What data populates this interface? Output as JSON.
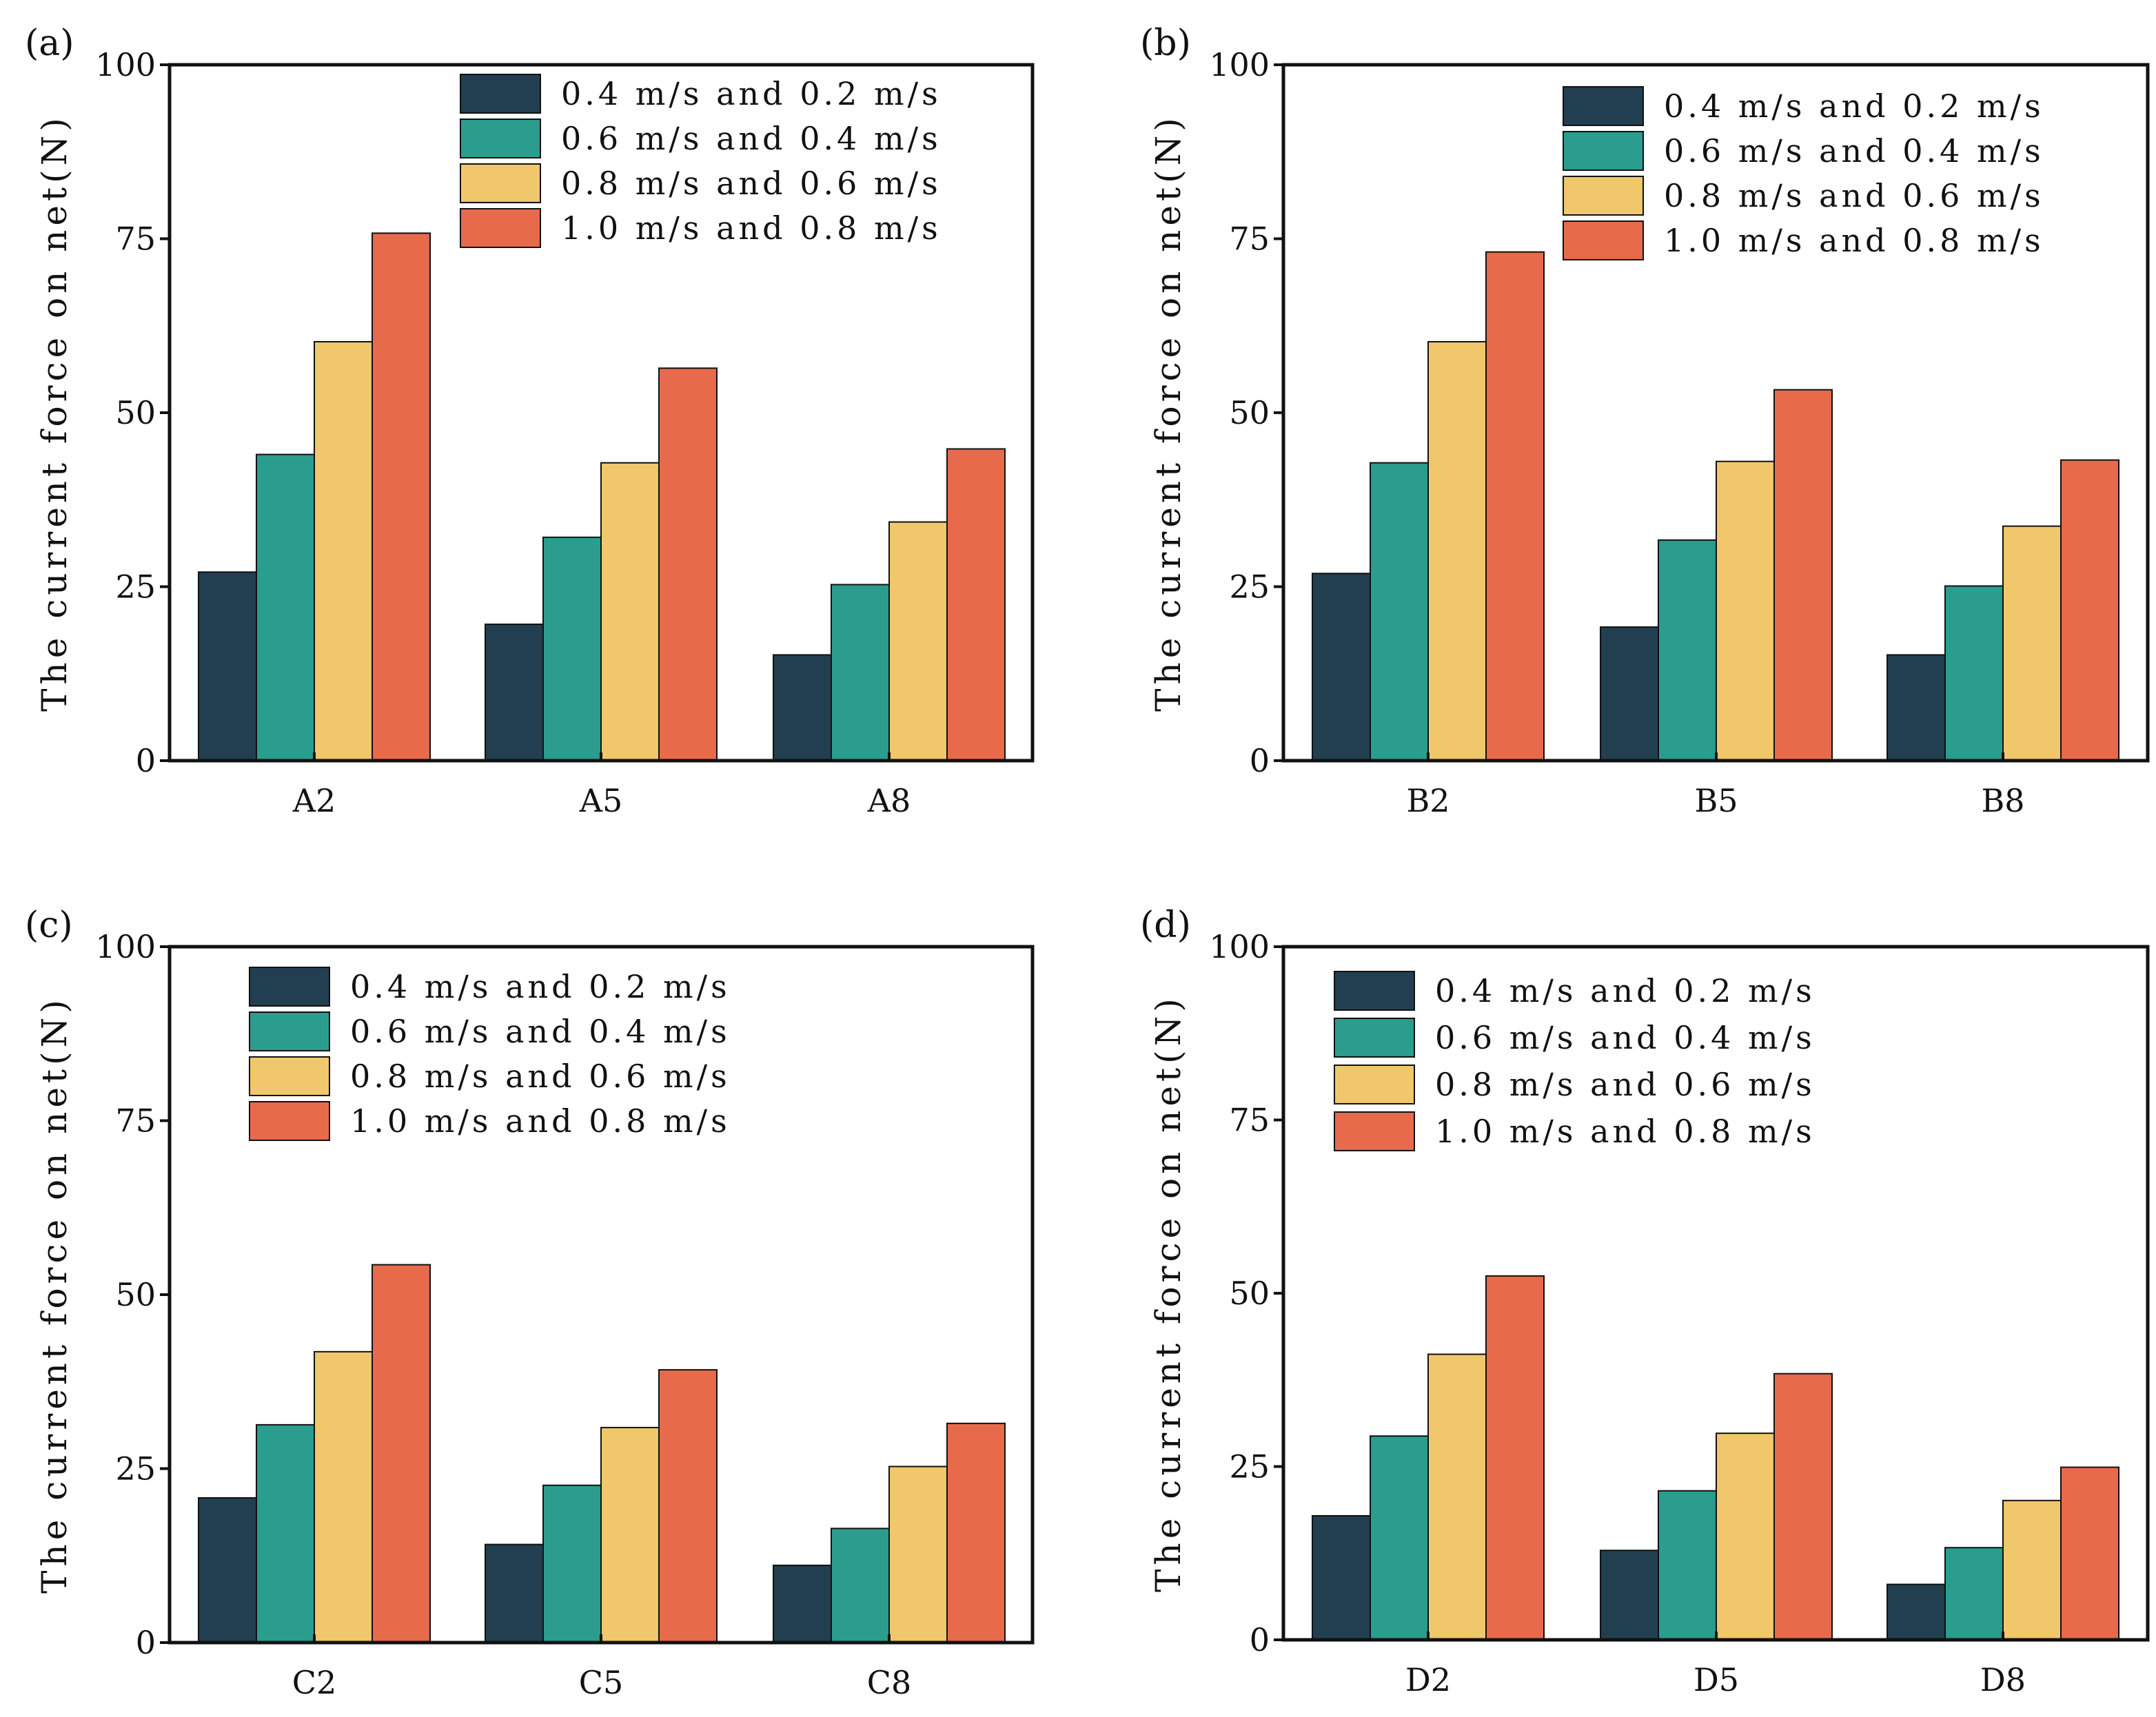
{
  "chart_data": [
    {
      "panel_label": "(a)",
      "type": "bar",
      "ylabel": "The current force on net(N)",
      "ylim": [
        0,
        100
      ],
      "yticks": [
        0,
        25,
        50,
        75,
        100
      ],
      "categories": [
        "A2",
        "A5",
        "A8"
      ],
      "series": [
        {
          "name": "0.4 m/s and 0.2 m/s",
          "values": [
            27.1,
            19.6,
            15.2
          ]
        },
        {
          "name": "0.6 m/s and 0.4 m/s",
          "values": [
            44.0,
            32.1,
            25.3
          ]
        },
        {
          "name": "0.8 m/s and 0.6 m/s",
          "values": [
            60.2,
            42.8,
            34.3
          ]
        },
        {
          "name": "1.0 m/s and 0.8 m/s",
          "values": [
            75.8,
            56.4,
            44.8
          ]
        }
      ],
      "legend": "top-right"
    },
    {
      "panel_label": "(b)",
      "type": "bar",
      "ylabel": "The current force on net(N)",
      "ylim": [
        0,
        100
      ],
      "yticks": [
        0,
        25,
        50,
        75,
        100
      ],
      "categories": [
        "B2",
        "B5",
        "B8"
      ],
      "series": [
        {
          "name": "0.4 m/s and 0.2 m/s",
          "values": [
            26.9,
            19.2,
            15.2
          ]
        },
        {
          "name": "0.6 m/s and 0.4 m/s",
          "values": [
            42.8,
            31.7,
            25.1
          ]
        },
        {
          "name": "0.8 m/s and 0.6 m/s",
          "values": [
            60.2,
            43.0,
            33.7
          ]
        },
        {
          "name": "1.0 m/s and 0.8 m/s",
          "values": [
            73.1,
            53.3,
            43.2
          ]
        }
      ],
      "legend": "top-right"
    },
    {
      "panel_label": "(c)",
      "type": "bar",
      "ylabel": "The current force on net(N)",
      "ylim": [
        0,
        100
      ],
      "yticks": [
        0,
        25,
        50,
        75,
        100
      ],
      "categories": [
        "C2",
        "C5",
        "C8"
      ],
      "series": [
        {
          "name": "0.4 m/s and 0.2 m/s",
          "values": [
            20.8,
            14.1,
            11.1
          ]
        },
        {
          "name": "0.6 m/s and 0.4 m/s",
          "values": [
            31.3,
            22.6,
            16.4
          ]
        },
        {
          "name": "0.8 m/s and 0.6 m/s",
          "values": [
            41.8,
            30.9,
            25.3
          ]
        },
        {
          "name": "1.0 m/s and 0.8 m/s",
          "values": [
            54.3,
            39.2,
            31.5
          ]
        }
      ],
      "legend": "top-left"
    },
    {
      "panel_label": "(d)",
      "type": "bar",
      "ylabel": "The current force on net(N)",
      "ylim": [
        0,
        100
      ],
      "yticks": [
        0,
        25,
        50,
        75,
        100
      ],
      "categories": [
        "D2",
        "D5",
        "D8"
      ],
      "series": [
        {
          "name": "0.4 m/s and 0.2 m/s",
          "values": [
            17.9,
            12.9,
            8.0
          ]
        },
        {
          "name": "0.6 m/s and 0.4 m/s",
          "values": [
            29.4,
            21.5,
            13.3
          ]
        },
        {
          "name": "0.8 m/s and 0.6 m/s",
          "values": [
            41.2,
            29.8,
            20.1
          ]
        },
        {
          "name": "1.0 m/s and 0.8 m/s",
          "values": [
            52.5,
            38.4,
            24.9
          ]
        }
      ],
      "legend": "top-left"
    }
  ],
  "colors": [
    "#213f50",
    "#2a9d8f",
    "#f0c76b",
    "#e76a4b"
  ]
}
